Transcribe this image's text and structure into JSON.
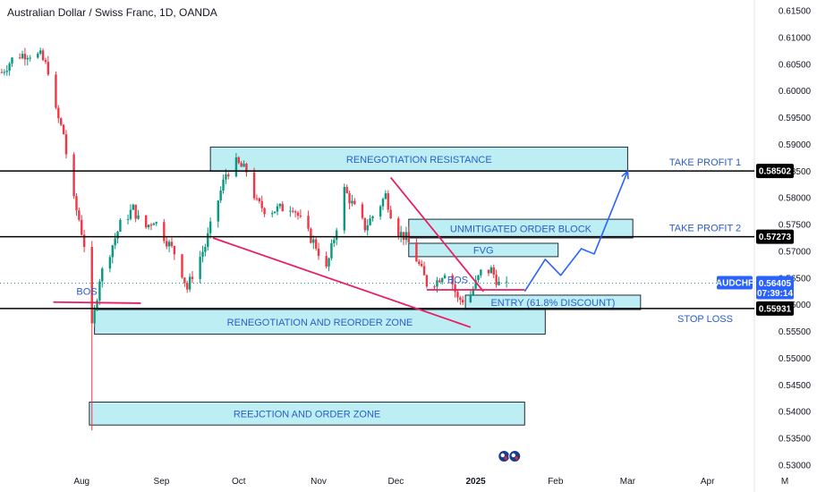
{
  "header": {
    "title": "Australian Dollar / Swiss Franc, 1D, OANDA"
  },
  "symbol_tag": {
    "symbol": "AUDCHF",
    "price": "0.56405",
    "countdown": "07:39:14",
    "color": "#2962ff"
  },
  "colors": {
    "up": "#089981",
    "down": "#f23645",
    "zone_fill": "#b2ebf2",
    "zone_border": "#1e2a38",
    "annot_line": "#e91e63",
    "projection": "#2962ff",
    "level_line": "#000000"
  },
  "chart_data": {
    "type": "candlestick",
    "symbol": "AUDCHF",
    "interval": "1D",
    "source": "OANDA",
    "ylim": [
      0.53,
      0.615
    ],
    "yticks": [
      "0.61500",
      "0.61000",
      "0.60500",
      "0.60000",
      "0.59500",
      "0.59000",
      "0.58500",
      "0.58000",
      "0.57500",
      "0.57000",
      "0.56500",
      "0.56000",
      "0.55500",
      "0.55000",
      "0.54500",
      "0.54000",
      "0.53500",
      "0.53000"
    ],
    "xticks": [
      {
        "label": "Aug",
        "date": "2024-08-01",
        "bold": false
      },
      {
        "label": "Sep",
        "date": "2024-09-01",
        "bold": false
      },
      {
        "label": "Oct",
        "date": "2024-10-01",
        "bold": false
      },
      {
        "label": "Nov",
        "date": "2024-11-01",
        "bold": false
      },
      {
        "label": "Dec",
        "date": "2024-12-01",
        "bold": false
      },
      {
        "label": "2025",
        "date": "2025-01-01",
        "bold": true
      },
      {
        "label": "Feb",
        "date": "2025-02-01",
        "bold": false
      },
      {
        "label": "Mar",
        "date": "2025-03-01",
        "bold": false
      },
      {
        "label": "Apr",
        "date": "2025-04-01",
        "bold": false
      },
      {
        "label": "M",
        "date": "2025-05-01",
        "bold": false
      }
    ],
    "price_path": [
      [
        "2024-07-01",
        0.6035
      ],
      [
        "2024-07-06",
        0.6065
      ],
      [
        "2024-07-11",
        0.607
      ],
      [
        "2024-07-16",
        0.6065
      ],
      [
        "2024-07-19",
        0.604
      ],
      [
        "2024-07-22",
        0.596
      ],
      [
        "2024-07-25",
        0.592
      ],
      [
        "2024-07-28",
        0.581
      ],
      [
        "2024-07-31",
        0.576
      ],
      [
        "2024-08-03",
        0.569
      ],
      [
        "2024-08-05",
        0.5555
      ],
      [
        "2024-08-08",
        0.565
      ],
      [
        "2024-08-12",
        0.57
      ],
      [
        "2024-08-16",
        0.575
      ],
      [
        "2024-08-21",
        0.578
      ],
      [
        "2024-08-25",
        0.574
      ],
      [
        "2024-08-29",
        0.576
      ],
      [
        "2024-09-03",
        0.572
      ],
      [
        "2024-09-07",
        0.569
      ],
      [
        "2024-09-11",
        0.563
      ],
      [
        "2024-09-14",
        0.567
      ],
      [
        "2024-09-18",
        0.571
      ],
      [
        "2024-09-22",
        0.578
      ],
      [
        "2024-09-26",
        0.5845
      ],
      [
        "2024-09-30",
        0.5865
      ],
      [
        "2024-10-04",
        0.585
      ],
      [
        "2024-10-08",
        0.579
      ],
      [
        "2024-10-12",
        0.5775
      ],
      [
        "2024-10-17",
        0.578
      ],
      [
        "2024-10-22",
        0.5785
      ],
      [
        "2024-10-27",
        0.574
      ],
      [
        "2024-10-31",
        0.571
      ],
      [
        "2024-11-04",
        0.5665
      ],
      [
        "2024-11-07",
        0.5725
      ],
      [
        "2024-11-11",
        0.5815
      ],
      [
        "2024-11-15",
        0.578
      ],
      [
        "2024-11-19",
        0.5745
      ],
      [
        "2024-11-24",
        0.578
      ],
      [
        "2024-11-27",
        0.5805
      ],
      [
        "2024-12-01",
        0.574
      ],
      [
        "2024-12-05",
        0.5725
      ],
      [
        "2024-12-09",
        0.5685
      ],
      [
        "2024-12-13",
        0.564
      ],
      [
        "2024-12-17",
        0.5645
      ],
      [
        "2024-12-21",
        0.567
      ],
      [
        "2024-12-25",
        0.561
      ],
      [
        "2024-12-29",
        0.561
      ],
      [
        "2025-01-03",
        0.566
      ],
      [
        "2025-01-07",
        0.5665
      ],
      [
        "2025-01-11",
        0.563
      ],
      [
        "2025-01-14",
        0.5635
      ]
    ],
    "horizontal_levels": [
      {
        "price": 0.58502,
        "label": "0.58502",
        "side_label": "TAKE PROFIT 1"
      },
      {
        "price": 0.57273,
        "label": "0.57273",
        "side_label": "TAKE PROFIT 2"
      },
      {
        "price": 0.55931,
        "label": "0.55931",
        "side_label": "STOP LOSS"
      }
    ],
    "current_price": {
      "price": 0.56405,
      "label": "0.56405"
    },
    "zones": [
      {
        "label": "RENEGOTIATION RESISTANCE",
        "from": "2024-09-20",
        "to": "2025-03-01",
        "top": 0.5895,
        "bottom": 0.585
      },
      {
        "label": "UNMITIGATED ORDER BLOCK",
        "from": "2024-12-06",
        "to": "2025-03-03",
        "top": 0.576,
        "bottom": 0.5725
      },
      {
        "label": "FVG",
        "from": "2024-12-06",
        "to": "2025-02-02",
        "top": 0.5715,
        "bottom": 0.569
      },
      {
        "label": "ENTRY (61.8% DISCOUNT)",
        "from": "2024-12-28",
        "to": "2025-03-06",
        "top": 0.5618,
        "bottom": 0.5591
      },
      {
        "label": "RENEGOTIATION AND REORDER ZONE",
        "from": "2024-08-06",
        "to": "2025-01-28",
        "top": 0.5591,
        "bottom": 0.5545
      },
      {
        "label": "REEJCTION AND ORDER ZONE",
        "from": "2024-08-04",
        "to": "2025-01-20",
        "top": 0.5418,
        "bottom": 0.5375
      }
    ],
    "annotations": [
      {
        "label": "BOS",
        "date": "2024-08-03",
        "price": 0.5615
      },
      {
        "label": "BOS",
        "date": "2024-12-25",
        "price": 0.5637
      }
    ],
    "trendlines": [
      {
        "from": [
          "2024-09-21",
          0.5725
        ],
        "to": [
          "2024-12-30",
          0.5558
        ]
      },
      {
        "from": [
          "2024-11-29",
          0.5838
        ],
        "to": [
          "2025-01-04",
          0.5625
        ]
      },
      {
        "from": [
          "2024-07-21",
          0.5605
        ],
        "to": [
          "2024-08-24",
          0.5603
        ]
      },
      {
        "from": [
          "2024-12-13",
          0.5628
        ],
        "to": [
          "2025-01-20",
          0.5628
        ]
      }
    ],
    "projection": [
      [
        "2025-01-20",
        0.5625
      ],
      [
        "2025-01-28",
        0.5685
      ],
      [
        "2025-02-03",
        0.5655
      ],
      [
        "2025-02-11",
        0.5705
      ],
      [
        "2025-02-16",
        0.5695
      ],
      [
        "2025-03-01",
        0.585
      ]
    ]
  }
}
